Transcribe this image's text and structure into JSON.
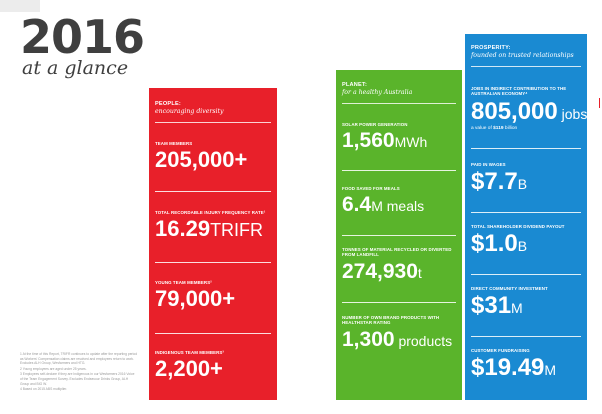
{
  "header": {
    "year": "2016",
    "subtitle": "at a glance"
  },
  "footnotes": [
    "1  At the time of this Report, TRIFR continues to update after the reporting period as Workers' Compensation claims are resolved and employees return to work. Excludes ALH Group, Wesfarmers and HTG.",
    "2  Young employees are aged under 25 years.",
    "3  Employees self-declare if they are Indigenous in our Wesfarmers 2016 Voice of the Team Engagement Survey. Excludes Endeavour Drinks Group, ALH Group and BIG W.",
    "4  Based on 2015 ABS multiplier."
  ],
  "people": {
    "title": "PEOPLE:",
    "subtitle": "encouraging diversity",
    "color": "#e8202a",
    "stats": [
      {
        "label": "TEAM MEMBERS",
        "value": "205,000+",
        "unit": ""
      },
      {
        "label": "TOTAL RECORDABLE INJURY FREQUENCY RATE¹",
        "value": "16.29",
        "unit": "TRIFR"
      },
      {
        "label": "YOUNG TEAM MEMBERS²",
        "value": "79,000+",
        "unit": ""
      },
      {
        "label": "INDIGENOUS TEAM MEMBERS³",
        "value": "2,200+",
        "unit": ""
      }
    ]
  },
  "planet": {
    "title": "PLANET:",
    "subtitle": "for a healthy Australia",
    "color": "#5ab42b",
    "stats": [
      {
        "label": "SOLAR POWER GENERATION",
        "value": "1,560",
        "unit": "MWh"
      },
      {
        "label": "FOOD SAVED FOR MEALS",
        "value": "6.4",
        "unit": "M meals"
      },
      {
        "label": "TONNES OF MATERIAL RECYCLED OR DIVERTED FROM LANDFILL",
        "value": "274,930",
        "unit": "t"
      },
      {
        "label": "NUMBER OF OWN BRAND PRODUCTS WITH HEALTHSTAR RATING",
        "value": "1,300",
        "unit": " products"
      }
    ]
  },
  "prosperity": {
    "title": "PROSPERITY:",
    "subtitle": "founded on trusted relationships",
    "color": "#1a8ad2",
    "stats": [
      {
        "label": "JOBS IN INDIRECT CONTRIBUTION TO THE AUSTRALIAN ECONOMY⁴",
        "value": "805,000",
        "unit": " jobs",
        "note_prefix": "a value of ",
        "note_value": "$119",
        "note_suffix": " billion"
      },
      {
        "label": "PAID IN WAGES",
        "value": "$7.7",
        "unit": "B"
      },
      {
        "label": "TOTAL SHAREHOLDER DIVIDEND PAYOUT",
        "value": "$1.0",
        "unit": "B"
      },
      {
        "label": "DIRECT COMMUNITY INVESTMENT",
        "value": "$31",
        "unit": "M"
      },
      {
        "label": "CUSTOMER FUNDRAISING",
        "value": "$19.49",
        "unit": "M"
      }
    ]
  }
}
